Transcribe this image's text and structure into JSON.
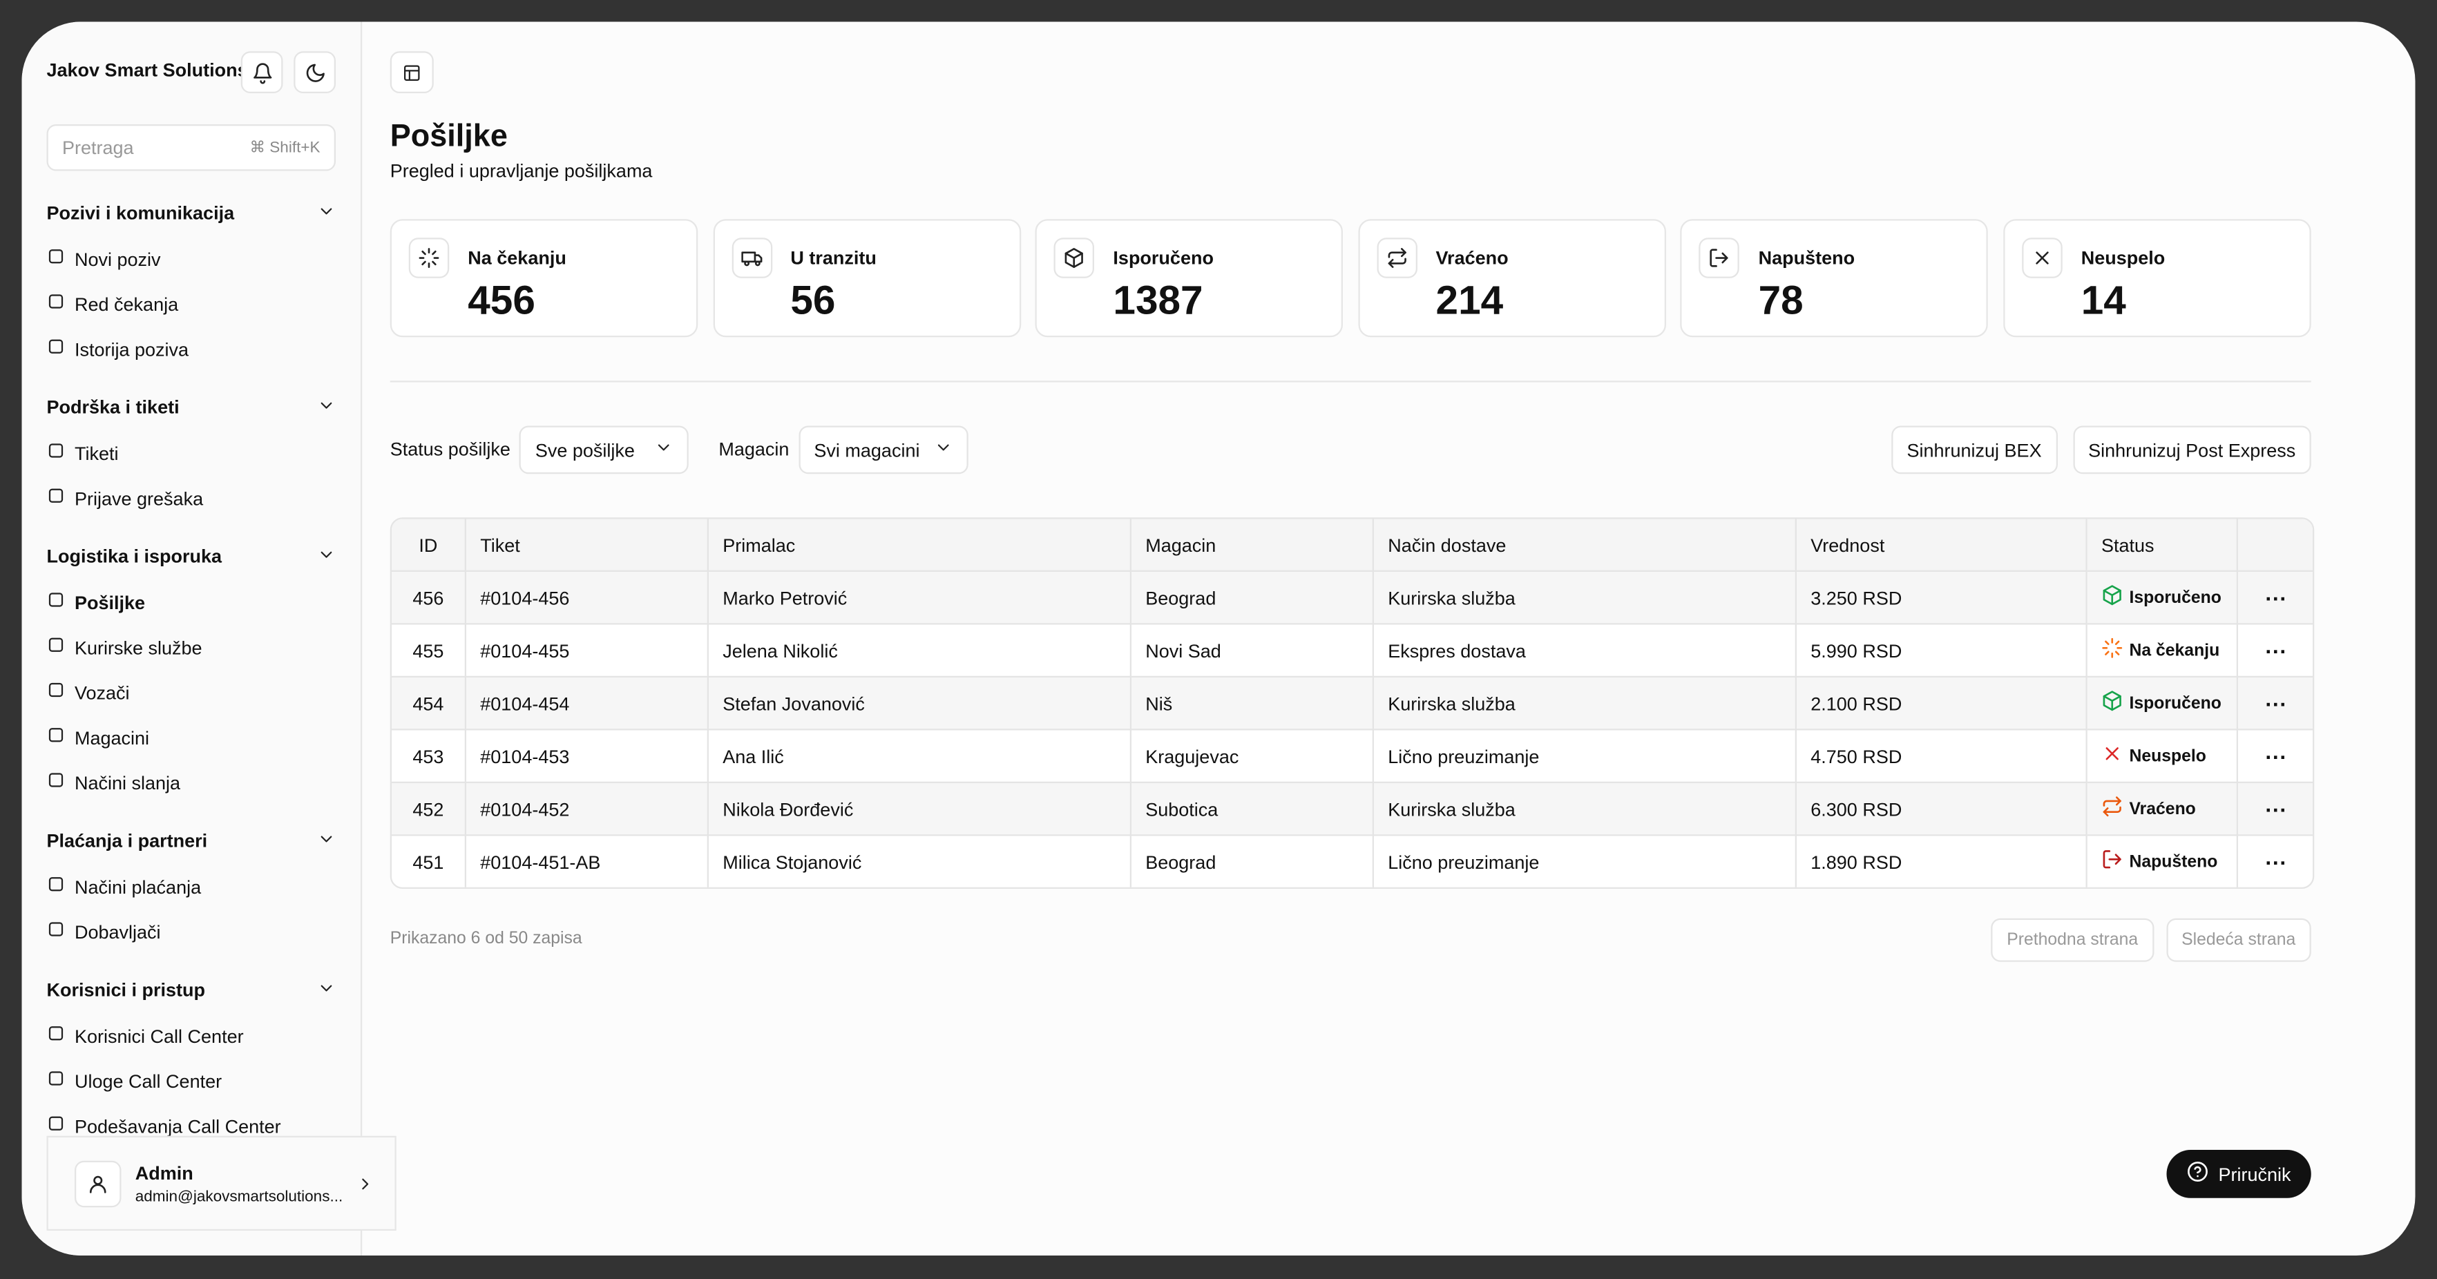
{
  "sidebar": {
    "brand": "Jakov Smart Solutions",
    "search": {
      "placeholder": "Pretraga",
      "shortcut": "Shift+K"
    },
    "sections": [
      {
        "title": "Pozivi i komunikacija",
        "items": [
          {
            "label": "Novi poziv"
          },
          {
            "label": "Red čekanja"
          },
          {
            "label": "Istorija poziva"
          }
        ]
      },
      {
        "title": "Podrška i tiketi",
        "items": [
          {
            "label": "Tiketi"
          },
          {
            "label": "Prijave grešaka"
          }
        ]
      },
      {
        "title": "Logistika i isporuka",
        "items": [
          {
            "label": "Pošiljke",
            "active": true
          },
          {
            "label": "Kurirske službe"
          },
          {
            "label": "Vozači"
          },
          {
            "label": "Magacini"
          },
          {
            "label": "Načini slanja"
          }
        ]
      },
      {
        "title": "Plaćanja i partneri",
        "items": [
          {
            "label": "Načini plaćanja"
          },
          {
            "label": "Dobavljači"
          }
        ]
      },
      {
        "title": "Korisnici i pristup",
        "items": [
          {
            "label": "Korisnici Call Center"
          },
          {
            "label": "Uloge Call Center"
          },
          {
            "label": "Podešavanja Call Center"
          }
        ]
      }
    ],
    "user": {
      "name": "Admin",
      "email": "admin@jakovsmartsolutions..."
    }
  },
  "header": {
    "title": "Pošiljke",
    "subtitle": "Pregled i upravljanje pošiljkama"
  },
  "stats": [
    {
      "label": "Na čekanju",
      "value": 456,
      "color": "#f97316"
    },
    {
      "label": "U tranzitu",
      "value": 56,
      "color": "#111111"
    },
    {
      "label": "Isporučeno",
      "value": 1387,
      "color": "#16a34a"
    },
    {
      "label": "Vraćeno",
      "value": 214,
      "color": "#ea580c"
    },
    {
      "label": "Napušteno",
      "value": 78,
      "color": "#b91c1c"
    },
    {
      "label": "Neuspelo",
      "value": 14,
      "color": "#dc2626"
    }
  ],
  "filters": [
    {
      "label": "Status pošiljke",
      "value": "Sve pošiljke"
    },
    {
      "label": "Magacin",
      "value": "Svi magacini"
    }
  ],
  "actions": [
    "Sinhrunizuj BEX",
    "Sinhrunizuj Post Express"
  ],
  "table": {
    "columns": [
      "ID",
      "Tiket",
      "Primalac",
      "Magacin",
      "Način dostave",
      "Vrednost",
      "Status"
    ],
    "rows": [
      [
        456,
        "#0104-456",
        "Marko Petrović",
        "Beograd",
        "Kurirska služba",
        "3.250 RSD",
        "Isporučeno"
      ],
      [
        455,
        "#0104-455",
        "Jelena Nikolić",
        "Novi Sad",
        "Ekspres dostava",
        "5.990 RSD",
        "Na čekanju"
      ],
      [
        454,
        "#0104-454",
        "Stefan Jovanović",
        "Niš",
        "Kurirska služba",
        "2.100 RSD",
        "Isporučeno"
      ],
      [
        453,
        "#0104-453",
        "Ana Ilić",
        "Kragujevac",
        "Lično preuzimanje",
        "4.750 RSD",
        "Neuspelo"
      ],
      [
        452,
        "#0104-452",
        "Nikola Đorđević",
        "Subotica",
        "Kurirska služba",
        "6.300 RSD",
        "Vraćeno"
      ],
      [
        451,
        "#0104-451-AB",
        "Milica Stojanović",
        "Beograd",
        "Lično preuzimanje",
        "1.890 RSD",
        "Napušteno"
      ]
    ]
  },
  "footer": {
    "summary": "Prikazano 6 od 50 zapisa",
    "prev": "Prethodna strana",
    "next": "Sledeća strana"
  },
  "help": "Priručnik"
}
